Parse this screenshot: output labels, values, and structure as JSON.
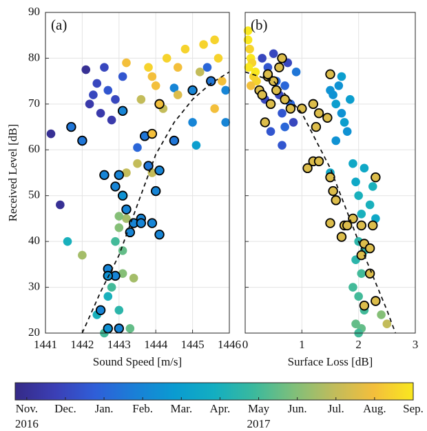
{
  "chart_data": [
    {
      "type": "scatter",
      "panel_label": "(a)",
      "xlabel": "Sound Speed [m/s]",
      "ylabel": "Received Level [dB]",
      "xlim": [
        1441,
        1446
      ],
      "ylim": [
        20,
        90
      ],
      "xticks": [
        1441,
        1442,
        1443,
        1444,
        1445,
        1446
      ],
      "yticks": [
        20,
        30,
        40,
        50,
        60,
        70,
        80,
        90
      ],
      "grid": true,
      "show_ytick_labels": true,
      "series": [
        {
          "x": [
            1441.15,
            1441.4,
            1441.6,
            1442.1,
            1442.2,
            1442.3,
            1442.4,
            1442.5,
            1442.6,
            1442.7,
            1442.8,
            1442.9,
            1443.1,
            1443.2,
            1443.5,
            1443.8,
            1444.0,
            1444.3,
            1444.5,
            1444.8,
            1445.0,
            1445.2,
            1445.4,
            1445.6,
            1445.8,
            1445.9,
            1443.6,
            1443.9,
            1444.2,
            1444.6,
            1445.1,
            1445.3,
            1445.7,
            1445.9,
            1443.0,
            1443.1,
            1442.9,
            1443.2,
            1442.8,
            1443.0,
            1443.3,
            1442.6,
            1442.4,
            1443.1,
            1443.0,
            1442.7,
            1443.4,
            1443.2,
            1443.5,
            1442.0,
            1443.9,
            1444.6,
            1445.6
          ],
          "y": [
            63.5,
            48,
            40,
            77.5,
            70,
            72,
            74.5,
            68,
            78,
            73,
            66.5,
            71,
            76,
            79,
            60.5,
            78,
            74,
            80,
            73.5,
            82,
            66,
            77,
            78,
            84,
            75,
            66,
            71,
            76,
            69,
            78,
            61,
            83,
            80,
            73,
            43,
            38,
            40,
            45,
            30,
            25,
            21,
            20,
            24,
            33,
            45.5,
            28,
            32,
            55,
            57,
            37,
            55,
            72,
            69
          ],
          "c": [
            0,
            0,
            5,
            0,
            0.5,
            1,
            1,
            0.5,
            1,
            1.5,
            0.5,
            1,
            1.5,
            9,
            2,
            9.5,
            9,
            9.5,
            3,
            9.5,
            3,
            8,
            2,
            9.5,
            9,
            3,
            8,
            9,
            8,
            9,
            4,
            9.5,
            9.5,
            3,
            7,
            6.5,
            6,
            7.5,
            6,
            5.5,
            6.5,
            6,
            5,
            7,
            7,
            5,
            7.5,
            8,
            8,
            7.5,
            8,
            8.5,
            9
          ]
        },
        {
          "edgecolor": "#000000",
          "x": [
            1441.7,
            1442.0,
            1442.6,
            1443.1,
            1442.9,
            1443.0,
            1443.1,
            1443.2,
            1443.4,
            1443.3,
            1443.6,
            1443.6,
            1443.8,
            1444.0,
            1444.1,
            1443.9,
            1443.7,
            1442.7,
            1442.9,
            1442.7,
            1442.5,
            1443.0,
            1442.7,
            1444.1,
            1444.5,
            1445.0,
            1445.5,
            1443.9,
            1444.1
          ],
          "y": [
            65,
            62,
            54.5,
            68.5,
            52,
            54.5,
            50,
            47,
            44,
            42,
            45,
            44,
            56.5,
            51,
            55.5,
            44,
            63,
            34,
            32.5,
            32.5,
            25,
            21,
            21,
            41.5,
            62,
            73,
            75,
            63.5,
            70
          ],
          "c": [
            2.5,
            2.5,
            3,
            3,
            3,
            3,
            3.5,
            3,
            3,
            3,
            3,
            3,
            2.5,
            3,
            3,
            3,
            2.5,
            3,
            3,
            3.5,
            3,
            3,
            3.5,
            3,
            2.5,
            3,
            2.5,
            9,
            9
          ]
        }
      ],
      "fit": {
        "x": [
          1442,
          1442.5,
          1443,
          1443.5,
          1444,
          1444.5,
          1445,
          1445.5,
          1446
        ],
        "y": [
          20,
          29,
          37,
          48,
          59,
          66,
          71,
          74.5,
          77
        ]
      }
    },
    {
      "type": "scatter",
      "panel_label": "(b)",
      "xlabel": "Surface Loss [dB]",
      "xlim": [
        0,
        3
      ],
      "ylim": [
        20,
        90
      ],
      "xticks": [
        0,
        1,
        2,
        3
      ],
      "yticks": [
        20,
        30,
        40,
        50,
        60,
        70,
        80,
        90
      ],
      "grid": true,
      "show_ytick_labels": false,
      "series": [
        {
          "x": [
            0.05,
            0.05,
            0.08,
            0.1,
            0.12,
            0.06,
            0.15,
            0.2,
            0.1,
            0.18,
            0.3,
            0.4,
            0.5,
            0.55,
            0.6,
            0.65,
            0.7,
            0.75,
            0.8,
            0.85,
            0.9,
            0.45,
            0.35,
            0.65,
            0.7,
            1.5,
            1.55,
            1.6,
            1.65,
            1.7,
            1.75,
            1.8,
            1.85,
            1.6,
            1.7,
            1.9,
            1.5,
            1.95,
            2.0,
            2.05,
            2.1,
            2.2,
            2.25,
            2.3,
            2.0,
            1.95,
            2.05,
            1.9,
            2.0,
            2.1,
            2.05,
            1.95,
            2.0,
            2.4,
            2.5,
            2.1
          ],
          "y": [
            86,
            84,
            82,
            80,
            79,
            78,
            76,
            75,
            74,
            77,
            80,
            78,
            81,
            75,
            72,
            68,
            74,
            79,
            70,
            66,
            77,
            64,
            71,
            61,
            65,
            73,
            72,
            70,
            74,
            68,
            66,
            64,
            71,
            62,
            76,
            57,
            55,
            53,
            50,
            46,
            56,
            48,
            52,
            45,
            40,
            36,
            33,
            30,
            28,
            25,
            21,
            22,
            20,
            24,
            22,
            38
          ],
          "c": [
            10,
            10,
            9.5,
            10,
            9.5,
            10,
            9.5,
            9.5,
            9,
            10,
            1,
            1.5,
            1,
            2,
            1,
            1.5,
            2,
            1,
            2,
            1,
            2.5,
            1.5,
            1,
            1.5,
            2,
            3.5,
            3.5,
            4,
            3.5,
            3.5,
            4,
            3.5,
            4,
            3.5,
            4,
            4.5,
            4.5,
            4.5,
            5,
            5,
            4.5,
            5,
            5,
            4.5,
            5.5,
            5.5,
            6,
            6,
            6,
            6,
            6.5,
            6.5,
            6,
            7,
            8,
            5.5
          ]
        },
        {
          "edgecolor": "#000000",
          "x": [
            0.25,
            0.3,
            0.4,
            0.5,
            0.55,
            0.6,
            0.45,
            0.35,
            0.7,
            0.8,
            0.4,
            0.65,
            1.0,
            1.2,
            1.25,
            1.3,
            1.45,
            1.5,
            1.1,
            1.2,
            1.3,
            1.5,
            1.55,
            1.6,
            1.5,
            1.75,
            1.8,
            1.7,
            1.9,
            2.05,
            2.1,
            2.2,
            2.25,
            2.3,
            2.2,
            2.3,
            2.1,
            2.05
          ],
          "y": [
            73,
            72,
            76,
            75,
            73,
            78,
            70,
            66,
            71,
            69,
            76.5,
            80,
            69,
            70,
            65,
            68,
            67,
            76.5,
            56,
            57.5,
            57.5,
            54,
            51,
            49,
            44,
            43.5,
            43.5,
            41,
            45,
            43.5,
            39.5,
            38.5,
            43.5,
            54,
            33,
            27,
            26,
            37
          ],
          "c": [
            8.5,
            8.5,
            8.5,
            8.5,
            8.5,
            8.5,
            8.5,
            8.5,
            8.5,
            8.5,
            8.5,
            8.5,
            8.5,
            8.5,
            8.5,
            8.5,
            8.5,
            8.5,
            8.5,
            8.5,
            8.5,
            8.5,
            8.5,
            8.5,
            8.5,
            8.5,
            8.5,
            8.5,
            8.5,
            8.5,
            8.5,
            8.5,
            8.5,
            8.5,
            8.5,
            8.5,
            8.5,
            8.5
          ]
        }
      ],
      "fit": {
        "x": [
          0,
          0.5,
          1,
          1.5,
          2,
          2.5,
          2.65
        ],
        "y": [
          77,
          75,
          68,
          56,
          40,
          25,
          20
        ]
      }
    },
    {
      "type": "colorbar",
      "clim": [
        -0.3,
        10
      ],
      "colormap": [
        "#352a87",
        "#3b3fb5",
        "#2f5ed8",
        "#1a7fd7",
        "#0a9bd1",
        "#13aec1",
        "#3bb99d",
        "#7fbf7a",
        "#c0bc5c",
        "#f3be3c",
        "#f9e71f"
      ],
      "ticks": [
        {
          "value": 0,
          "label": "Nov."
        },
        {
          "value": 1,
          "label": "Dec."
        },
        {
          "value": 2,
          "label": "Jan."
        },
        {
          "value": 3,
          "label": "Feb."
        },
        {
          "value": 4,
          "label": "Mar."
        },
        {
          "value": 5,
          "label": "Apr."
        },
        {
          "value": 6,
          "label": "May"
        },
        {
          "value": 7,
          "label": "Jun."
        },
        {
          "value": 8,
          "label": "Jul."
        },
        {
          "value": 9,
          "label": "Aug."
        },
        {
          "value": 10,
          "label": "Sep."
        }
      ],
      "year_labels": [
        {
          "value": 0,
          "label": "2016"
        },
        {
          "value": 6,
          "label": "2017"
        }
      ]
    }
  ]
}
